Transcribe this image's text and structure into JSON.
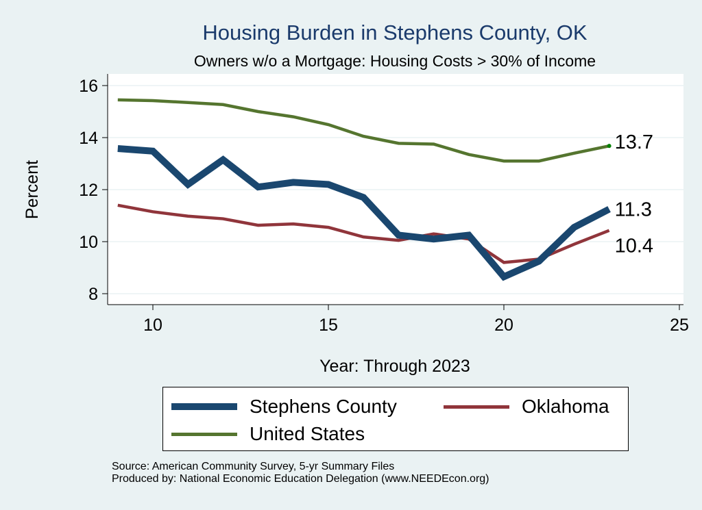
{
  "chart_data": {
    "type": "line",
    "title": "Housing Burden in Stephens County, OK",
    "subtitle": "Owners w/o a Mortgage: Housing Costs > 30% of Income",
    "xlabel": "Year: Through 2023",
    "ylabel": "Percent",
    "xlim": [
      8.7,
      25.2
    ],
    "ylim": [
      7.6,
      16.3
    ],
    "xticks": [
      10,
      15,
      20,
      25
    ],
    "yticks": [
      8,
      10,
      12,
      14,
      16
    ],
    "grid": true,
    "x": [
      9,
      10,
      11,
      12,
      13,
      14,
      15,
      16,
      17,
      18,
      19,
      20,
      21,
      22,
      23
    ],
    "series": [
      {
        "name": "Stephens County",
        "color": "#1a476f",
        "values": [
          13.58,
          13.48,
          12.2,
          13.15,
          12.1,
          12.28,
          12.2,
          11.7,
          10.25,
          10.1,
          10.25,
          8.65,
          9.25,
          10.55,
          11.25
        ],
        "end_label": "11.3"
      },
      {
        "name": "Oklahoma",
        "color": "#90353b",
        "values": [
          11.4,
          11.15,
          10.98,
          10.88,
          10.63,
          10.68,
          10.55,
          10.18,
          10.05,
          10.3,
          10.1,
          9.2,
          9.33,
          9.9,
          10.43
        ],
        "end_label": "10.4"
      },
      {
        "name": "United States",
        "color": "#55752f",
        "values": [
          15.45,
          15.42,
          15.35,
          15.27,
          15.0,
          14.8,
          14.5,
          14.05,
          13.78,
          13.75,
          13.35,
          13.1,
          13.1,
          13.4,
          13.68
        ],
        "end_label": "13.7"
      }
    ],
    "legend": {
      "placement": "bottom",
      "entries": [
        "Stephens County",
        "Oklahoma",
        "United States"
      ]
    }
  },
  "colors": {
    "background": "#eaf2f3",
    "plot_bg": "#ffffff",
    "grid": "#eaf2f3"
  },
  "notes": {
    "source": "Source: American Community Survey, 5-yr Summary Files",
    "produced_by": "Produced by: National Economic Education Delegation (www.NEEDEcon.org)"
  }
}
